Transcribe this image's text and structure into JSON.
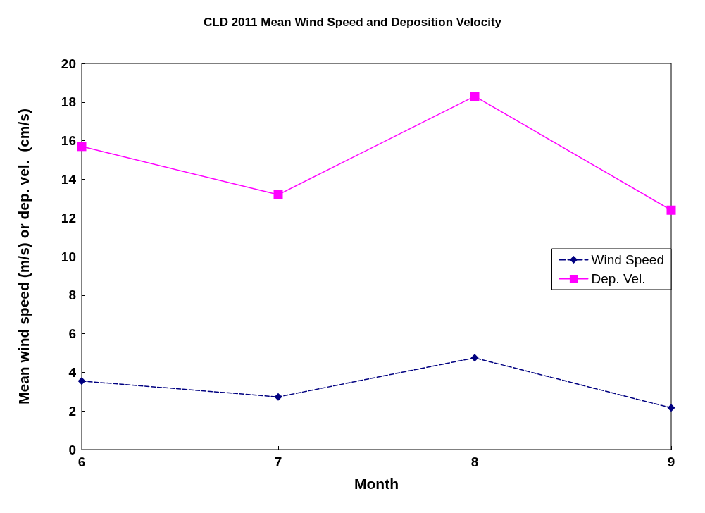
{
  "chart_data": {
    "type": "line",
    "title": "CLD 2011 Mean Wind Speed and Deposition Velocity",
    "xlabel": "Month",
    "ylabel": "Mean wind speed (m/s) or dep. vel.  (cm/s)",
    "x": [
      6,
      7,
      8,
      9
    ],
    "xlim": [
      6,
      9
    ],
    "xticks": [
      6,
      7,
      8,
      9
    ],
    "ylim": [
      0,
      20
    ],
    "yticks": [
      0,
      2,
      4,
      6,
      8,
      10,
      12,
      14,
      16,
      18,
      20
    ],
    "grid": false,
    "legend": "right",
    "series": [
      {
        "name": "Wind Speed",
        "color": "#000080",
        "values": [
          3.55,
          2.73,
          4.75,
          2.16
        ],
        "marker": "diamond",
        "line_style": "dashed"
      },
      {
        "name": "Dep. Vel.",
        "color": "#ff00ff",
        "values": [
          15.7,
          13.2,
          18.3,
          12.4
        ],
        "marker": "square",
        "line_style": "solid"
      }
    ]
  }
}
